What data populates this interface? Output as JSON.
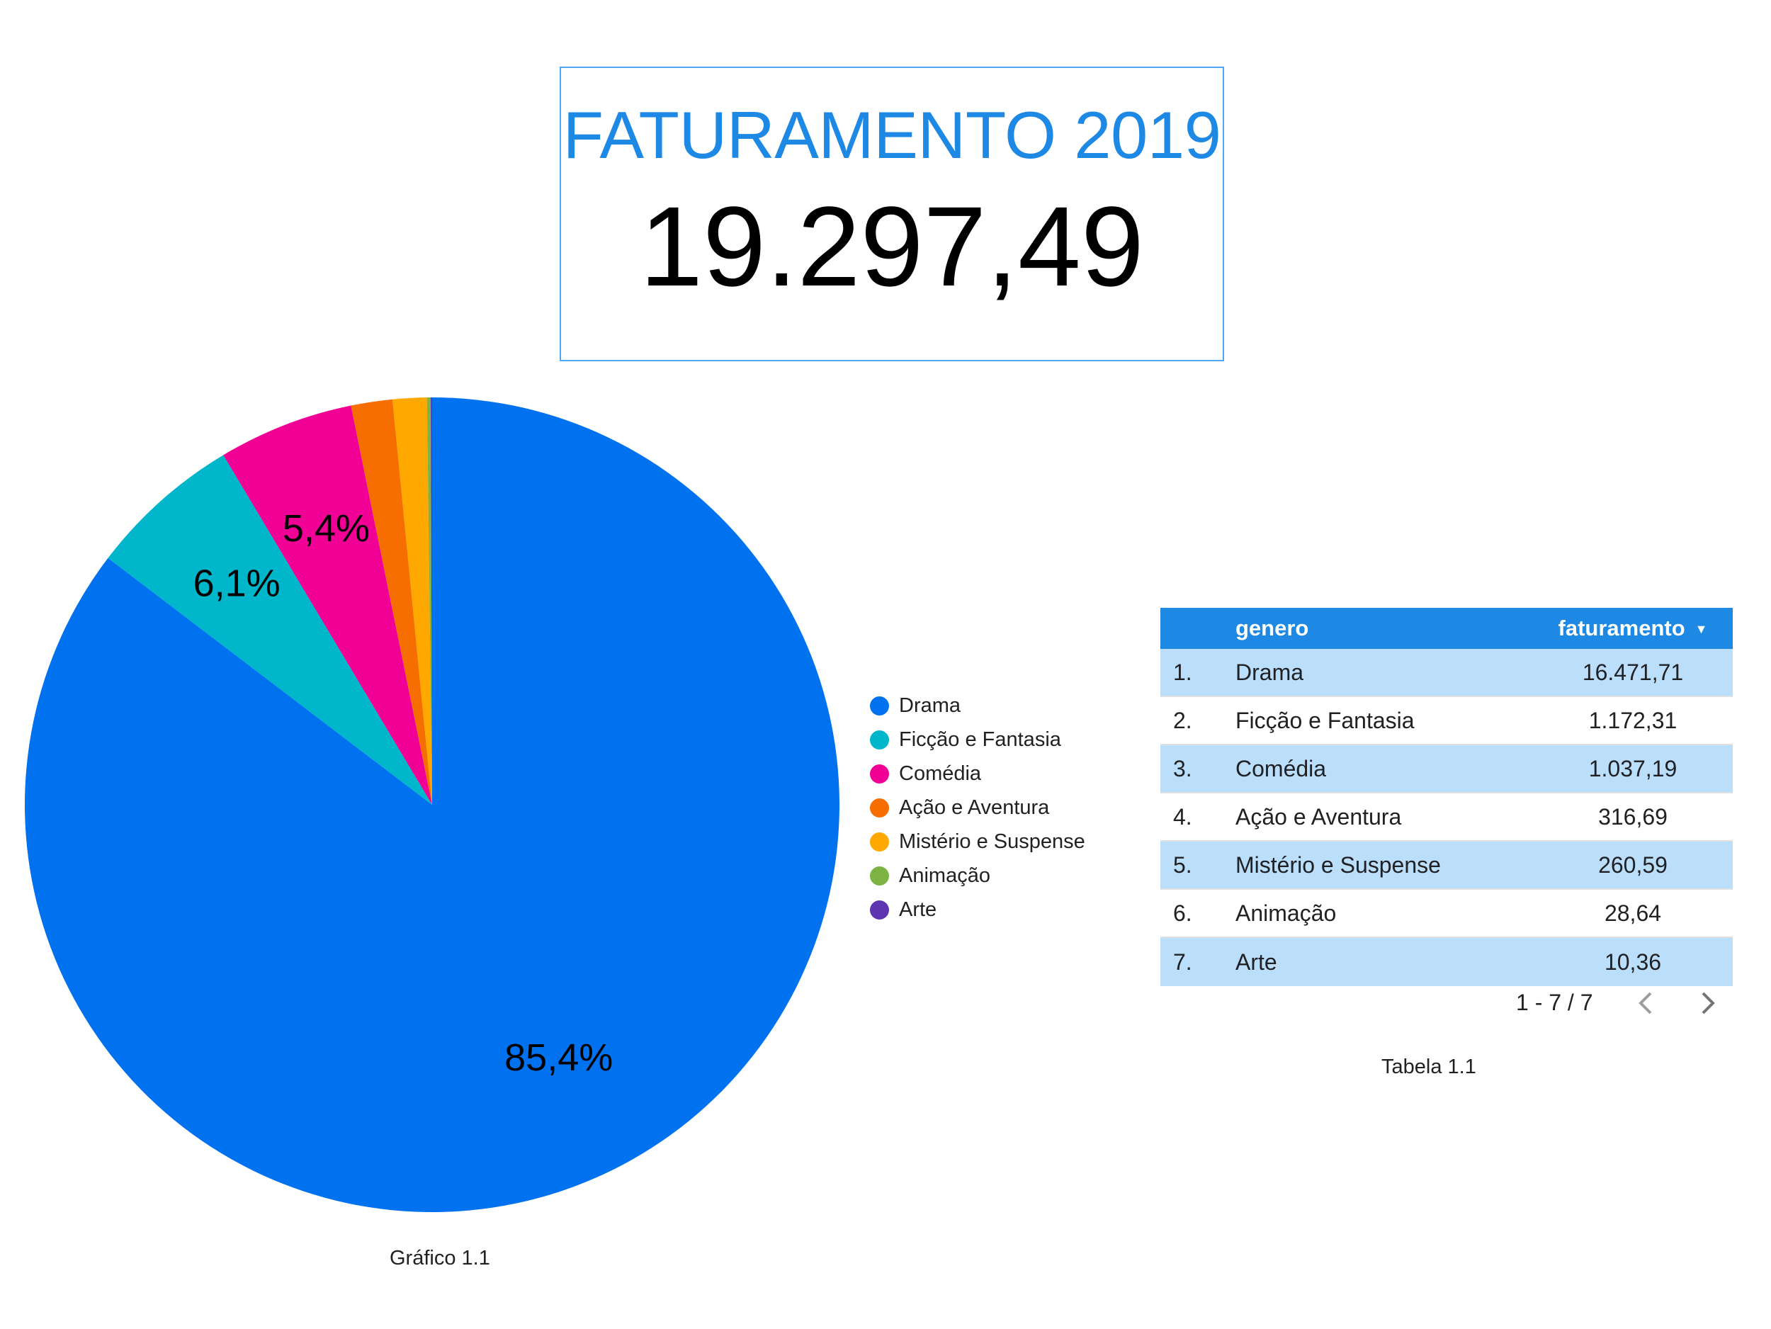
{
  "scorecard": {
    "title": "FATURAMENTO 2019",
    "value": "19.297,49"
  },
  "chart_data": {
    "type": "pie",
    "title": "",
    "categories": [
      "Drama",
      "Ficção e Fantasia",
      "Comédia",
      "Ação e Aventura",
      "Mistério e Suspense",
      "Animação",
      "Arte"
    ],
    "values": [
      16471.71,
      1172.31,
      1037.19,
      316.69,
      260.59,
      28.64,
      10.36
    ],
    "colors": [
      "#0072f0",
      "#00b6cb",
      "#f10096",
      "#f66d00",
      "#ffa800",
      "#7cb342",
      "#5e35b1"
    ],
    "slice_labels": [
      "85,4%",
      "6,1%",
      "5,4%",
      "",
      "",
      "",
      ""
    ],
    "legend_position": "right",
    "start_angle": "12 o'clock, clockwise",
    "caption": "Gráfico 1.1"
  },
  "legend": {
    "items": [
      {
        "label": "Drama",
        "color": "#0072f0"
      },
      {
        "label": "Ficção e Fantasia",
        "color": "#00b6cb"
      },
      {
        "label": "Comédia",
        "color": "#f10096"
      },
      {
        "label": "Ação e Aventura",
        "color": "#f66d00"
      },
      {
        "label": "Mistério e Suspense",
        "color": "#ffa800"
      },
      {
        "label": "Animação",
        "color": "#7cb342"
      },
      {
        "label": "Arte",
        "color": "#5e35b1"
      }
    ]
  },
  "table": {
    "header": {
      "genero": "genero",
      "faturamento": "faturamento",
      "sort_icon": "sort-descending-icon"
    },
    "rows": [
      {
        "idx": "1.",
        "genero": "Drama",
        "faturamento": "16.471,71"
      },
      {
        "idx": "2.",
        "genero": "Ficção e Fantasia",
        "faturamento": "1.172,31"
      },
      {
        "idx": "3.",
        "genero": "Comédia",
        "faturamento": "1.037,19"
      },
      {
        "idx": "4.",
        "genero": "Ação e Aventura",
        "faturamento": "316,69"
      },
      {
        "idx": "5.",
        "genero": "Mistério e Suspense",
        "faturamento": "260,59"
      },
      {
        "idx": "6.",
        "genero": "Animação",
        "faturamento": "28,64"
      },
      {
        "idx": "7.",
        "genero": "Arte",
        "faturamento": "10,36"
      }
    ],
    "pagination": "1 - 7 / 7",
    "caption": "Tabela 1.1",
    "colors": {
      "header": "#1e88e5",
      "alt_row": "#bbdefb"
    }
  }
}
